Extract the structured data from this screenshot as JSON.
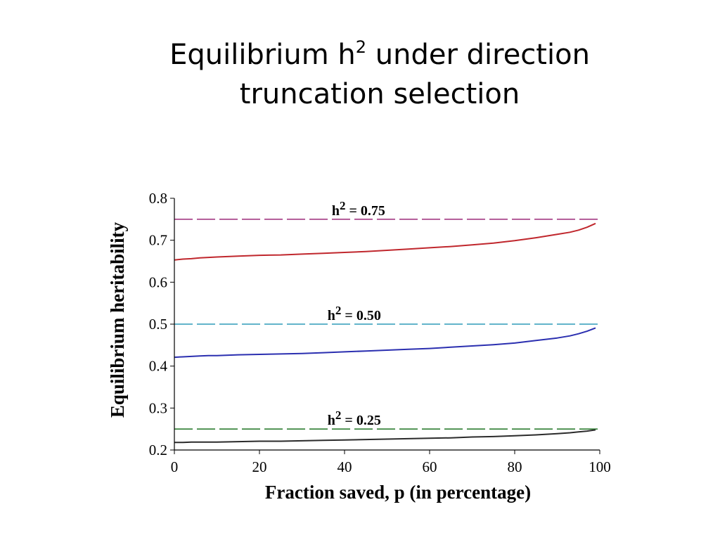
{
  "slide": {
    "title_part1": "Equilibrium h",
    "title_sup": "2",
    "title_part2": " under direction",
    "title_line2": "truncation selection"
  },
  "chart_data": {
    "type": "line",
    "xlabel": "Fraction saved, p (in percentage)",
    "ylabel": "Equilibrium heritability",
    "xlim": [
      0,
      100
    ],
    "ylim": [
      0.2,
      0.8
    ],
    "xticks": [
      {
        "v": 0,
        "label": "0"
      },
      {
        "v": 20,
        "label": "20"
      },
      {
        "v": 40,
        "label": "40"
      },
      {
        "v": 60,
        "label": "60"
      },
      {
        "v": 80,
        "label": "80"
      },
      {
        "v": 100,
        "label": "100"
      }
    ],
    "yticks": [
      {
        "v": 0.2,
        "label": "0.2"
      },
      {
        "v": 0.3,
        "label": "0.3"
      },
      {
        "v": 0.4,
        "label": "0.4"
      },
      {
        "v": 0.5,
        "label": "0.5"
      },
      {
        "v": 0.6,
        "label": "0.6"
      },
      {
        "v": 0.7,
        "label": "0.7"
      },
      {
        "v": 0.8,
        "label": "0.8"
      }
    ],
    "grid": false,
    "reference_lines": [
      {
        "y": 0.75,
        "label_base": "h",
        "label_sup": "2",
        "label_rest": " = 0.75",
        "color": "#a33a83",
        "label_x": 37
      },
      {
        "y": 0.5,
        "label_base": "h",
        "label_sup": "2",
        "label_rest": " = 0.50",
        "color": "#2f9bb8",
        "label_x": 36
      },
      {
        "y": 0.25,
        "label_base": "h",
        "label_sup": "2",
        "label_rest": " = 0.25",
        "color": "#2e7d32",
        "label_x": 36
      }
    ],
    "series": [
      {
        "color": "#c0272d",
        "x": [
          0,
          2,
          4,
          6,
          8,
          10,
          15,
          20,
          25,
          30,
          35,
          40,
          45,
          50,
          55,
          60,
          65,
          70,
          75,
          80,
          85,
          90,
          93,
          95,
          97,
          99
        ],
        "y": [
          0.653,
          0.655,
          0.656,
          0.658,
          0.659,
          0.66,
          0.662,
          0.664,
          0.665,
          0.667,
          0.669,
          0.671,
          0.673,
          0.676,
          0.679,
          0.682,
          0.685,
          0.689,
          0.693,
          0.699,
          0.706,
          0.714,
          0.719,
          0.724,
          0.731,
          0.74
        ]
      },
      {
        "color": "#2b2fb0",
        "x": [
          0,
          2,
          4,
          6,
          8,
          10,
          15,
          20,
          25,
          30,
          35,
          40,
          45,
          50,
          55,
          60,
          65,
          70,
          75,
          80,
          85,
          90,
          93,
          95,
          97,
          99
        ],
        "y": [
          0.421,
          0.422,
          0.423,
          0.424,
          0.425,
          0.425,
          0.427,
          0.428,
          0.429,
          0.43,
          0.432,
          0.434,
          0.436,
          0.438,
          0.44,
          0.442,
          0.445,
          0.448,
          0.451,
          0.455,
          0.461,
          0.467,
          0.472,
          0.477,
          0.483,
          0.491
        ]
      },
      {
        "color": "#2b2b2b",
        "x": [
          0,
          2,
          4,
          6,
          8,
          10,
          15,
          20,
          25,
          30,
          35,
          40,
          45,
          50,
          55,
          60,
          65,
          70,
          75,
          80,
          85,
          90,
          93,
          95,
          97,
          99
        ],
        "y": [
          0.218,
          0.218,
          0.219,
          0.219,
          0.219,
          0.219,
          0.22,
          0.221,
          0.221,
          0.222,
          0.223,
          0.224,
          0.225,
          0.226,
          0.227,
          0.228,
          0.229,
          0.231,
          0.232,
          0.234,
          0.236,
          0.239,
          0.241,
          0.243,
          0.245,
          0.248
        ]
      }
    ]
  }
}
